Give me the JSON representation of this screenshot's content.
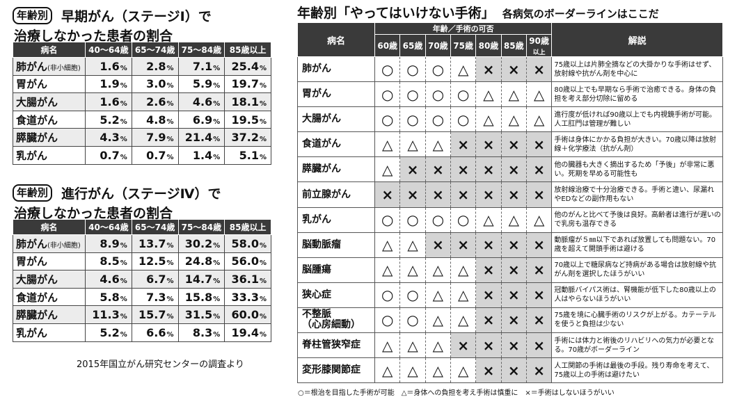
{
  "left": {
    "early": {
      "tag": "年齢別",
      "headline1": "早期がん（ステージⅠ）で",
      "headline2": "治療しなかった患者の割合",
      "columns": [
        "病名",
        "40〜64歳",
        "65〜74歳",
        "75〜84歳",
        "85歳以上"
      ],
      "rows": [
        {
          "name": "肺がん",
          "sub": "(非小細胞)",
          "v": [
            "1.6",
            "2.8",
            "7.1",
            "25.4"
          ]
        },
        {
          "name": "胃がん",
          "sub": "",
          "v": [
            "1.9",
            "3.0",
            "5.9",
            "19.7"
          ]
        },
        {
          "name": "大腸がん",
          "sub": "",
          "v": [
            "1.6",
            "2.6",
            "4.6",
            "18.1"
          ]
        },
        {
          "name": "食道がん",
          "sub": "",
          "v": [
            "5.2",
            "4.8",
            "6.9",
            "19.5"
          ]
        },
        {
          "name": "膵臓がん",
          "sub": "",
          "v": [
            "4.3",
            "7.9",
            "21.4",
            "37.2"
          ]
        },
        {
          "name": "乳がん",
          "sub": "",
          "v": [
            "0.7",
            "0.7",
            "1.4",
            "5.1"
          ]
        }
      ]
    },
    "advanced": {
      "tag": "年齢別",
      "headline1": "進行がん（ステージⅣ）で",
      "headline2": "治療しなかった患者の割合",
      "columns": [
        "病名",
        "40〜64歳",
        "65〜74歳",
        "75〜84歳",
        "85歳以上"
      ],
      "rows": [
        {
          "name": "肺がん",
          "sub": "(非小細胞)",
          "v": [
            "8.9",
            "13.7",
            "30.2",
            "58.0"
          ]
        },
        {
          "name": "胃がん",
          "sub": "",
          "v": [
            "8.5",
            "12.5",
            "24.8",
            "56.0"
          ]
        },
        {
          "name": "大腸がん",
          "sub": "",
          "v": [
            "4.6",
            "6.7",
            "14.7",
            "36.1"
          ]
        },
        {
          "name": "食道がん",
          "sub": "",
          "v": [
            "5.8",
            "7.3",
            "15.8",
            "33.3"
          ]
        },
        {
          "name": "膵臓がん",
          "sub": "",
          "v": [
            "11.3",
            "15.7",
            "31.5",
            "60.0"
          ]
        },
        {
          "name": "乳がん",
          "sub": "",
          "v": [
            "5.2",
            "6.6",
            "8.3",
            "19.4"
          ]
        }
      ]
    },
    "percent_unit": "%",
    "source": "2015年国立がん研究センターの調査より"
  },
  "right": {
    "title_big": "年齢別「やってはいけない手術」",
    "title_small": "各病気のボーダーラインはここだ",
    "col_disease": "病名",
    "col_group": "年齢／手術の可否",
    "ages": [
      "60歳",
      "65歳",
      "70歳",
      "75歳",
      "80歳",
      "85歳",
      "90歳以上"
    ],
    "col_notes": "解説",
    "rows": [
      {
        "name": "肺がん",
        "marks": [
          "○",
          "○",
          "○",
          "△",
          "×",
          "×",
          "×"
        ],
        "note": "75歳以上は片肺全摘などの大掛かりな手術はせず、放射線や抗がん剤を中心に"
      },
      {
        "name": "胃がん",
        "marks": [
          "○",
          "○",
          "○",
          "○",
          "△",
          "△",
          "△"
        ],
        "note": "80歳以上でも早期なら手術で治癒できる。身体の負担を考え部分切除に留める"
      },
      {
        "name": "大腸がん",
        "marks": [
          "○",
          "○",
          "○",
          "○",
          "△",
          "△",
          "△"
        ],
        "note": "進行度が低ければ90歳以上でも内視鏡手術が可能。人工肛門は管理が難しい"
      },
      {
        "name": "食道がん",
        "marks": [
          "△",
          "△",
          "△",
          "×",
          "×",
          "×",
          "×"
        ],
        "note": "手術は身体にかかる負担が大きい。70歳以降は放射線＋化学療法（抗がん剤）"
      },
      {
        "name": "膵臓がん",
        "marks": [
          "△",
          "×",
          "×",
          "×",
          "×",
          "×",
          "×"
        ],
        "note": "他の臓器も大きく摘出するため「予後」が非常に悪い。死期を早める可能性も"
      },
      {
        "name": "前立腺がん",
        "marks": [
          "×",
          "×",
          "×",
          "×",
          "×",
          "×",
          "×"
        ],
        "note": "放射線治療で十分治療できる。手術と違い、尿漏れやEDなどの副作用もない"
      },
      {
        "name": "乳がん",
        "marks": [
          "○",
          "○",
          "○",
          "○",
          "△",
          "△",
          "△"
        ],
        "note": "他のがんと比べて予後は良好。高齢者は進行が遅いので乳房も温存できる"
      },
      {
        "name": "脳動脈瘤",
        "marks": [
          "△",
          "△",
          "×",
          "×",
          "×",
          "×",
          "×"
        ],
        "note": "動脈瘤が５㎜以下であれば放置しても問題ない。70歳を超えて開頭手術は避ける"
      },
      {
        "name": "脳腫瘍",
        "marks": [
          "△",
          "△",
          "△",
          "△",
          "×",
          "×",
          "×"
        ],
        "note": "70歳以上で糖尿病など持病がある場合は放射線や抗がん剤を選択したほうがいい"
      },
      {
        "name": "狭心症",
        "marks": [
          "○",
          "○",
          "△",
          "△",
          "×",
          "×",
          "×"
        ],
        "note": "冠動脈バイパス術は、腎機能が低下した80歳以上の人はやらないほうがいい"
      },
      {
        "name": "不整脈\n（心房細動）",
        "marks": [
          "○",
          "○",
          "△",
          "△",
          "×",
          "×",
          "×"
        ],
        "note": "75歳を境に心臓手術のリスクが上がる。カテーテルを使うと負担は少ない"
      },
      {
        "name": "脊柱管狭窄症",
        "marks": [
          "△",
          "△",
          "△",
          "×",
          "×",
          "×",
          "×"
        ],
        "note": "手術には体力と術後のリハビリへの気力が必要となる。70歳がボーダーライン"
      },
      {
        "name": "変形膝関節症",
        "marks": [
          "△",
          "△",
          "△",
          "△",
          "×",
          "×",
          "×"
        ],
        "note": "人工関節の手術は最後の手段。残り寿命を考えて、75歳以上の手術は避けたい"
      }
    ],
    "legend": "○＝根治を目指した手術が可能　△＝身体への負担を考え手術は慎重に　×＝手術はしないほうがいい"
  }
}
